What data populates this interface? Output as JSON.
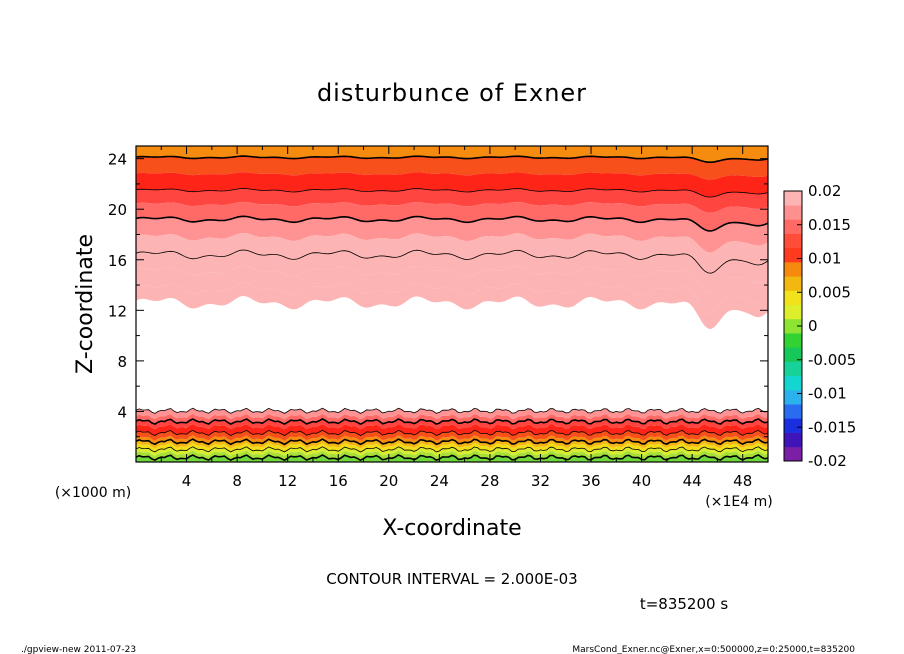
{
  "chart_data": {
    "type": "heatmap",
    "title": "disturbunce of Exner",
    "xlabel": "X-coordinate",
    "ylabel": "Z-coordinate",
    "x_unit_label": "(×1E4 m)",
    "y_unit_label": "(×1000 m)",
    "xlim": [
      0,
      50
    ],
    "ylim": [
      0,
      25
    ],
    "x_ticks": [
      4,
      8,
      12,
      16,
      20,
      24,
      28,
      32,
      36,
      40,
      44,
      48
    ],
    "y_ticks": [
      4,
      8,
      12,
      16,
      20,
      24
    ],
    "contour_interval_text": "CONTOUR INTERVAL = 2.000E-03",
    "time_text": "t=835200 s",
    "colorbar": {
      "min": -0.02,
      "max": 0.02,
      "labels": [
        "0.02",
        "0.015",
        "0.01",
        "0.005",
        "0",
        "-0.005",
        "-0.01",
        "-0.015",
        "-0.02"
      ],
      "colors": [
        "#7a1fa6",
        "#3f14b8",
        "#1b2ee0",
        "#2a6cf0",
        "#2ab1ee",
        "#14d6d0",
        "#17d19a",
        "#16c85a",
        "#33d233",
        "#8ee433",
        "#ddee2a",
        "#f2e21c",
        "#f3b80f",
        "#f58a0f",
        "#ff3a1e",
        "#ff4d38",
        "#ff6a64",
        "#ff9090",
        "#fdb4b4"
      ]
    },
    "bands": [
      {
        "level": 0.0045,
        "color": "#70d83a"
      },
      {
        "level": 0.005,
        "color": "#a8e03a"
      },
      {
        "level": 0.0065,
        "color": "#d8ec30"
      },
      {
        "level": 0.0075,
        "color": "#f2dd18"
      },
      {
        "level": 0.0085,
        "color": "#f5b514"
      },
      {
        "level": 0.0095,
        "color": "#f58c10"
      },
      {
        "level": 0.011,
        "color": "#f8501a"
      },
      {
        "level": 0.013,
        "color": "#ff2418"
      },
      {
        "level": 0.0145,
        "color": "#ff4540"
      },
      {
        "level": 0.016,
        "color": "#ff6a66"
      },
      {
        "level": 0.0175,
        "color": "#ff9292"
      },
      {
        "level": 0.019,
        "color": "#fdb4b4"
      }
    ],
    "field_description_z": [
      {
        "z_range": [
          0,
          4
        ],
        "range": [
          0.0045,
          0.019
        ]
      },
      {
        "z_range": [
          4,
          12
        ],
        "range": [
          0.019,
          0.02
        ]
      },
      {
        "z_range": [
          12,
          25
        ],
        "range": [
          0.0095,
          0.019
        ]
      }
    ]
  },
  "footer": {
    "left": "./gpview-new  2011-07-23",
    "right": "MarsCond_Exner.nc@Exner,x=0:500000,z=0:25000,t=835200"
  }
}
